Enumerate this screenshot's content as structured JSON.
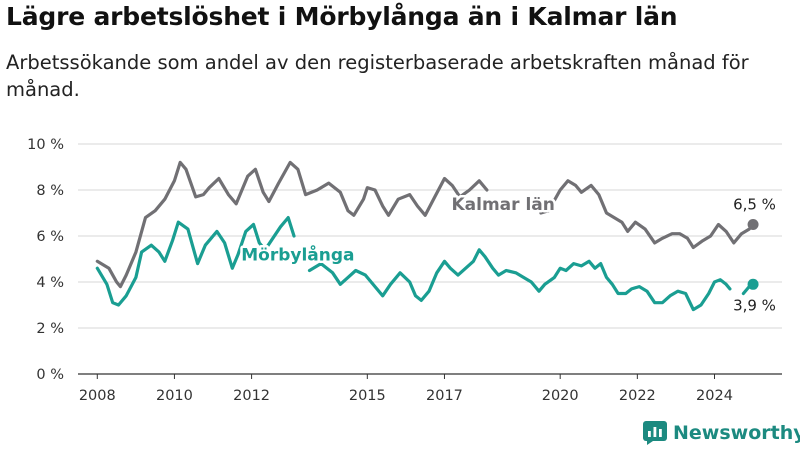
{
  "title": "Lägre arbetslöshet i Mörbylånga än i Kalmar län",
  "subtitle": "Arbetssökande som andel av den registerbaserade arbetskraften månad för månad.",
  "brand": {
    "name": "Newsworthy"
  },
  "chart_data": {
    "type": "line",
    "ylim": [
      0,
      10
    ],
    "xlim": [
      2007.5,
      2025.75
    ],
    "y_ticks": [
      0,
      2,
      4,
      6,
      8,
      10
    ],
    "y_tick_labels": [
      "0 %",
      "2 %",
      "4 %",
      "6 %",
      "8 %",
      "10 %"
    ],
    "x_ticks": [
      2008,
      2010,
      2012,
      2015,
      2017,
      2020,
      2022,
      2024
    ],
    "x_tick_labels": [
      "2008",
      "2010",
      "2012",
      "2015",
      "2017",
      "2020",
      "2022",
      "2024"
    ],
    "grid": true,
    "series": [
      {
        "name": "Kalmar län",
        "color": "#717074",
        "end_label": "6,5 %",
        "points": [
          [
            2008.0,
            4.9
          ],
          [
            2008.3,
            4.6
          ],
          [
            2008.5,
            4.0
          ],
          [
            2008.6,
            3.8
          ],
          [
            2008.75,
            4.3
          ],
          [
            2009.0,
            5.3
          ],
          [
            2009.25,
            6.8
          ],
          [
            2009.5,
            7.1
          ],
          [
            2009.75,
            7.6
          ],
          [
            2010.0,
            8.4
          ],
          [
            2010.15,
            9.2
          ],
          [
            2010.3,
            8.9
          ],
          [
            2010.55,
            7.7
          ],
          [
            2010.75,
            7.8
          ],
          [
            2010.9,
            8.1
          ],
          [
            2011.15,
            8.5
          ],
          [
            2011.4,
            7.8
          ],
          [
            2011.6,
            7.4
          ],
          [
            2011.9,
            8.6
          ],
          [
            2012.1,
            8.9
          ],
          [
            2012.3,
            7.9
          ],
          [
            2012.45,
            7.5
          ],
          [
            2012.7,
            8.3
          ],
          [
            2013.0,
            9.2
          ],
          [
            2013.2,
            8.9
          ],
          [
            2013.4,
            7.8
          ],
          [
            2013.7,
            8.0
          ],
          [
            2014.0,
            8.3
          ],
          [
            2014.3,
            7.9
          ],
          [
            2014.5,
            7.1
          ],
          [
            2014.65,
            6.9
          ],
          [
            2014.9,
            7.6
          ],
          [
            2015.0,
            8.1
          ],
          [
            2015.2,
            8.0
          ],
          [
            2015.4,
            7.3
          ],
          [
            2015.55,
            6.9
          ],
          [
            2015.8,
            7.6
          ],
          [
            2016.1,
            7.8
          ],
          [
            2016.3,
            7.3
          ],
          [
            2016.5,
            6.9
          ],
          [
            2016.75,
            7.7
          ],
          [
            2017.0,
            8.5
          ],
          [
            2017.2,
            8.2
          ],
          [
            2017.4,
            7.7
          ],
          [
            2017.65,
            8.0
          ],
          [
            2017.9,
            8.4
          ],
          [
            2018.1,
            8.0
          ]
        ],
        "points_2": [
          [
            2019.5,
            7.0
          ],
          [
            2019.7,
            7.1
          ],
          [
            2020.0,
            8.0
          ],
          [
            2020.2,
            8.4
          ],
          [
            2020.4,
            8.2
          ],
          [
            2020.55,
            7.9
          ],
          [
            2020.8,
            8.2
          ],
          [
            2021.0,
            7.8
          ],
          [
            2021.2,
            7.0
          ],
          [
            2021.4,
            6.8
          ],
          [
            2021.6,
            6.6
          ],
          [
            2021.75,
            6.2
          ],
          [
            2021.95,
            6.6
          ],
          [
            2022.2,
            6.3
          ],
          [
            2022.45,
            5.7
          ],
          [
            2022.65,
            5.9
          ],
          [
            2022.9,
            6.1
          ],
          [
            2023.1,
            6.1
          ],
          [
            2023.3,
            5.9
          ],
          [
            2023.45,
            5.5
          ],
          [
            2023.7,
            5.8
          ],
          [
            2023.9,
            6.0
          ],
          [
            2024.1,
            6.5
          ],
          [
            2024.3,
            6.2
          ],
          [
            2024.5,
            5.7
          ],
          [
            2024.7,
            6.1
          ],
          [
            2024.9,
            6.3
          ],
          [
            2025.0,
            6.5
          ]
        ]
      },
      {
        "name": "Mörbylånga",
        "color": "#1a9e92",
        "end_label": "3,9 %",
        "points": [
          [
            2008.0,
            4.6
          ],
          [
            2008.25,
            3.9
          ],
          [
            2008.4,
            3.1
          ],
          [
            2008.55,
            3.0
          ],
          [
            2008.75,
            3.4
          ],
          [
            2009.0,
            4.2
          ],
          [
            2009.15,
            5.3
          ],
          [
            2009.4,
            5.6
          ],
          [
            2009.6,
            5.3
          ],
          [
            2009.75,
            4.9
          ],
          [
            2009.95,
            5.8
          ],
          [
            2010.1,
            6.6
          ],
          [
            2010.35,
            6.3
          ],
          [
            2010.6,
            4.8
          ],
          [
            2010.8,
            5.6
          ],
          [
            2010.95,
            5.9
          ],
          [
            2011.1,
            6.2
          ],
          [
            2011.3,
            5.7
          ],
          [
            2011.5,
            4.6
          ],
          [
            2011.65,
            5.2
          ],
          [
            2011.85,
            6.2
          ],
          [
            2012.05,
            6.5
          ],
          [
            2012.2,
            5.7
          ],
          [
            2012.35,
            5.4
          ],
          [
            2012.55,
            5.9
          ],
          [
            2012.75,
            6.4
          ],
          [
            2012.95,
            6.8
          ],
          [
            2013.1,
            6.0
          ]
        ],
        "points_2": [
          [
            2013.5,
            4.5
          ],
          [
            2013.8,
            4.8
          ],
          [
            2014.1,
            4.4
          ],
          [
            2014.3,
            3.9
          ],
          [
            2014.5,
            4.2
          ],
          [
            2014.7,
            4.5
          ],
          [
            2014.95,
            4.3
          ],
          [
            2015.2,
            3.8
          ],
          [
            2015.4,
            3.4
          ],
          [
            2015.6,
            3.9
          ],
          [
            2015.85,
            4.4
          ],
          [
            2016.1,
            4.0
          ],
          [
            2016.25,
            3.4
          ],
          [
            2016.4,
            3.2
          ],
          [
            2016.6,
            3.6
          ],
          [
            2016.8,
            4.4
          ],
          [
            2017.0,
            4.9
          ],
          [
            2017.15,
            4.6
          ],
          [
            2017.35,
            4.3
          ],
          [
            2017.55,
            4.6
          ],
          [
            2017.75,
            4.9
          ],
          [
            2017.9,
            5.4
          ],
          [
            2018.05,
            5.1
          ],
          [
            2018.25,
            4.6
          ],
          [
            2018.4,
            4.3
          ],
          [
            2018.6,
            4.5
          ],
          [
            2018.85,
            4.4
          ],
          [
            2019.05,
            4.2
          ],
          [
            2019.25,
            4.0
          ],
          [
            2019.45,
            3.6
          ],
          [
            2019.6,
            3.9
          ],
          [
            2019.85,
            4.2
          ],
          [
            2020.0,
            4.6
          ],
          [
            2020.15,
            4.5
          ],
          [
            2020.35,
            4.8
          ],
          [
            2020.55,
            4.7
          ],
          [
            2020.75,
            4.9
          ],
          [
            2020.9,
            4.6
          ],
          [
            2021.05,
            4.8
          ],
          [
            2021.2,
            4.2
          ],
          [
            2021.35,
            3.9
          ],
          [
            2021.5,
            3.5
          ],
          [
            2021.7,
            3.5
          ],
          [
            2021.85,
            3.7
          ],
          [
            2022.05,
            3.8
          ],
          [
            2022.25,
            3.6
          ],
          [
            2022.45,
            3.1
          ],
          [
            2022.65,
            3.1
          ],
          [
            2022.85,
            3.4
          ],
          [
            2023.05,
            3.6
          ],
          [
            2023.25,
            3.5
          ],
          [
            2023.45,
            2.8
          ],
          [
            2023.65,
            3.0
          ],
          [
            2023.85,
            3.5
          ],
          [
            2024.0,
            4.0
          ],
          [
            2024.15,
            4.1
          ],
          [
            2024.3,
            3.9
          ],
          [
            2024.4,
            3.7
          ]
        ],
        "points_3": [
          [
            2024.75,
            3.5
          ],
          [
            2024.9,
            3.8
          ],
          [
            2025.0,
            3.9
          ]
        ]
      }
    ]
  }
}
